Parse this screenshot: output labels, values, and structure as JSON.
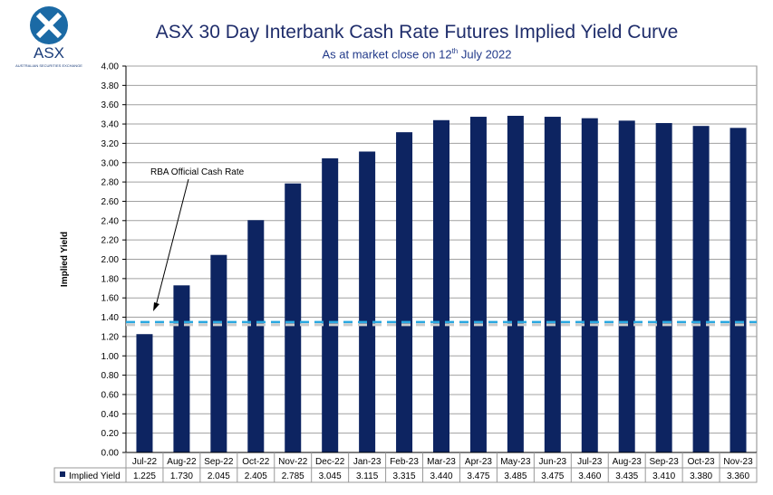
{
  "logo": {
    "text": "ASX",
    "subtext": "AUSTRALIAN SECURITIES EXCHANGE"
  },
  "header": {
    "title": "ASX 30 Day Interbank Cash Rate Futures Implied Yield Curve",
    "subtitle_prefix": "As at market close on 12",
    "subtitle_sup": "th",
    "subtitle_suffix": " July 2022"
  },
  "chart_data": {
    "type": "bar",
    "title": "ASX 30 Day Interbank Cash Rate Futures Implied Yield Curve",
    "subtitle": "As at market close on 12th July 2022",
    "ylabel": "Implied Yield",
    "xlabel": "",
    "ylim": [
      0,
      4.0
    ],
    "yticks": [
      "0.00",
      "0.20",
      "0.40",
      "0.60",
      "0.80",
      "1.00",
      "1.20",
      "1.40",
      "1.60",
      "1.80",
      "2.00",
      "2.20",
      "2.40",
      "2.60",
      "2.80",
      "3.00",
      "3.20",
      "3.40",
      "3.60",
      "3.80",
      "4.00"
    ],
    "grid": true,
    "categories": [
      "Jul-22",
      "Aug-22",
      "Sep-22",
      "Oct-22",
      "Nov-22",
      "Dec-22",
      "Jan-23",
      "Feb-23",
      "Mar-23",
      "Apr-23",
      "May-23",
      "Jun-23",
      "Jul-23",
      "Aug-23",
      "Sep-23",
      "Oct-23",
      "Nov-23"
    ],
    "series": [
      {
        "name": "Implied Yield",
        "values": [
          "1.225",
          "1.730",
          "2.045",
          "2.405",
          "2.785",
          "3.045",
          "3.115",
          "3.315",
          "3.440",
          "3.475",
          "3.485",
          "3.475",
          "3.460",
          "3.435",
          "3.410",
          "3.380",
          "3.360"
        ],
        "color": "#0d2461"
      }
    ],
    "reference_line": {
      "label": "RBA Official Cash Rate",
      "value": 1.35,
      "color": "#29a8e0",
      "style": "dashed"
    },
    "data_table": true
  }
}
